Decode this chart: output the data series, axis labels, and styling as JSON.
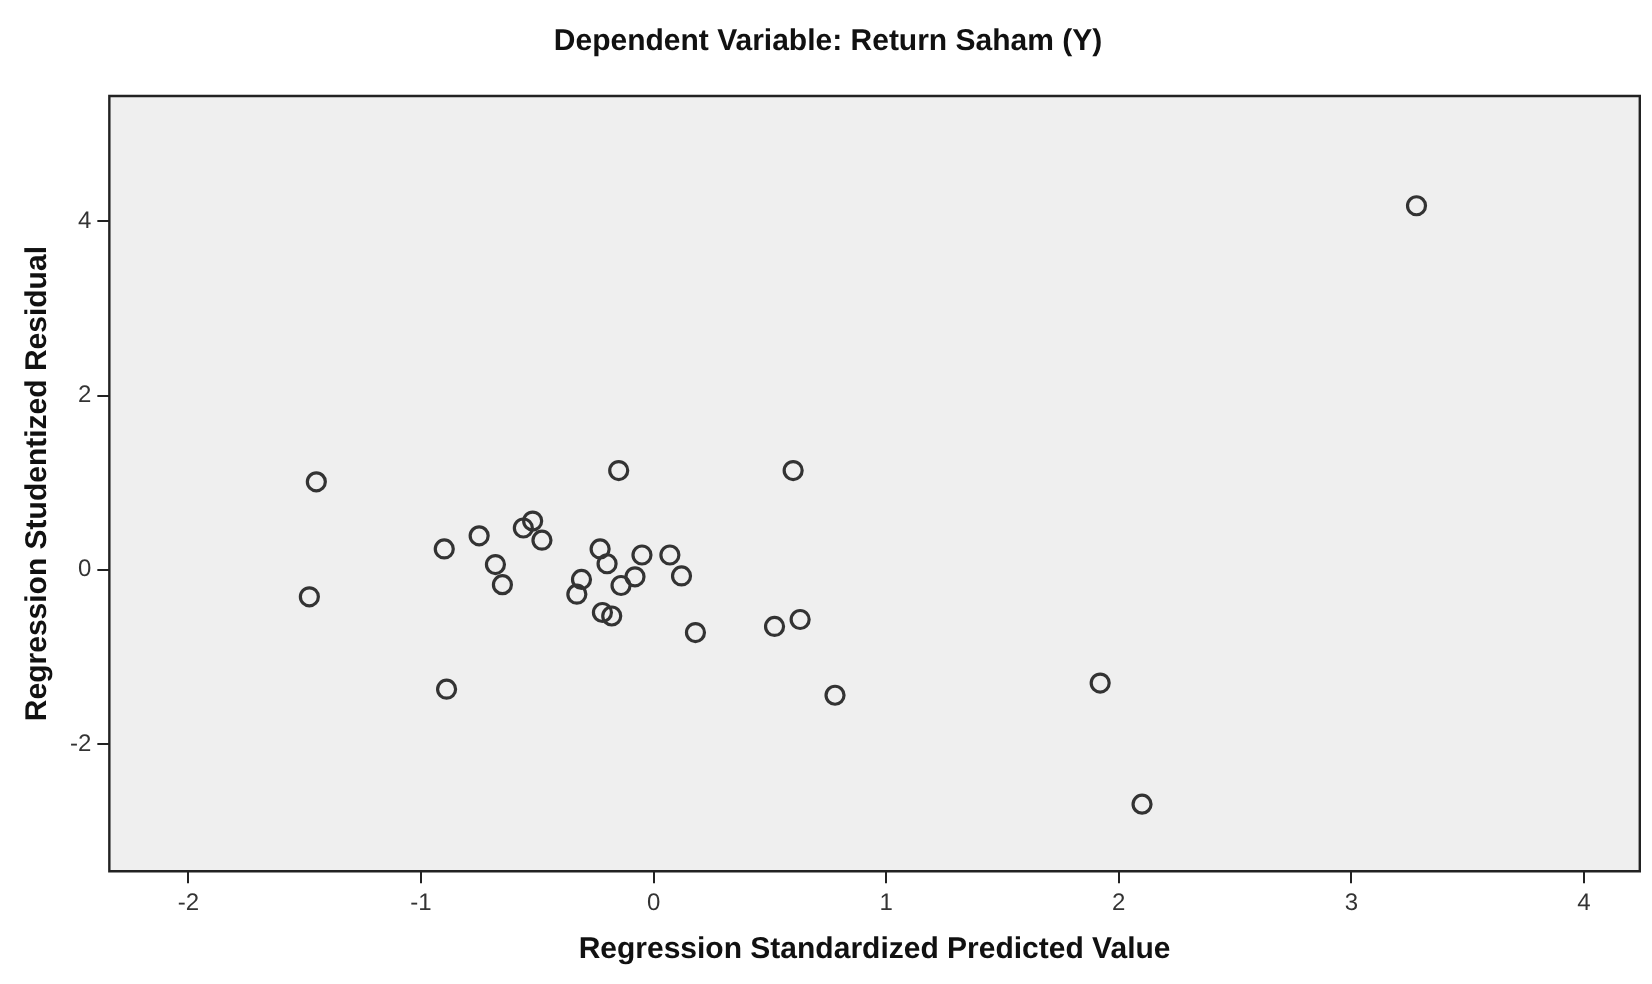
{
  "chart_data": {
    "type": "scatter",
    "title": "Dependent Variable: Return Saham (Y)",
    "xlabel": "Regression Standardized Predicted Value",
    "ylabel": "Regression Studentized Residual",
    "x": [
      -1.45,
      -1.48,
      -0.9,
      -0.89,
      -0.75,
      -0.68,
      -0.65,
      -0.56,
      -0.52,
      -0.48,
      -0.15,
      -0.23,
      -0.2,
      -0.31,
      -0.33,
      -0.22,
      -0.18,
      -0.14,
      -0.08,
      -0.05,
      0.07,
      0.12,
      0.18,
      0.6,
      0.52,
      0.63,
      0.78,
      1.92,
      2.1,
      3.28
    ],
    "values": [
      1.01,
      -0.31,
      0.24,
      -1.37,
      0.39,
      0.06,
      -0.17,
      0.48,
      0.56,
      0.34,
      1.14,
      0.24,
      0.07,
      -0.11,
      -0.28,
      -0.49,
      -0.53,
      -0.18,
      -0.08,
      0.17,
      0.17,
      -0.07,
      -0.72,
      1.14,
      -0.65,
      -0.57,
      -1.44,
      -1.3,
      -2.69,
      4.18
    ],
    "color": "#333333",
    "marker": "circle",
    "grid": false,
    "xlim": [
      -2.34,
      4.24
    ],
    "xticks": [
      -2,
      -1,
      0,
      1,
      2,
      3,
      4
    ],
    "ylim": [
      -3.46,
      5.44
    ],
    "yticks": [
      -2,
      0,
      2,
      4
    ]
  }
}
